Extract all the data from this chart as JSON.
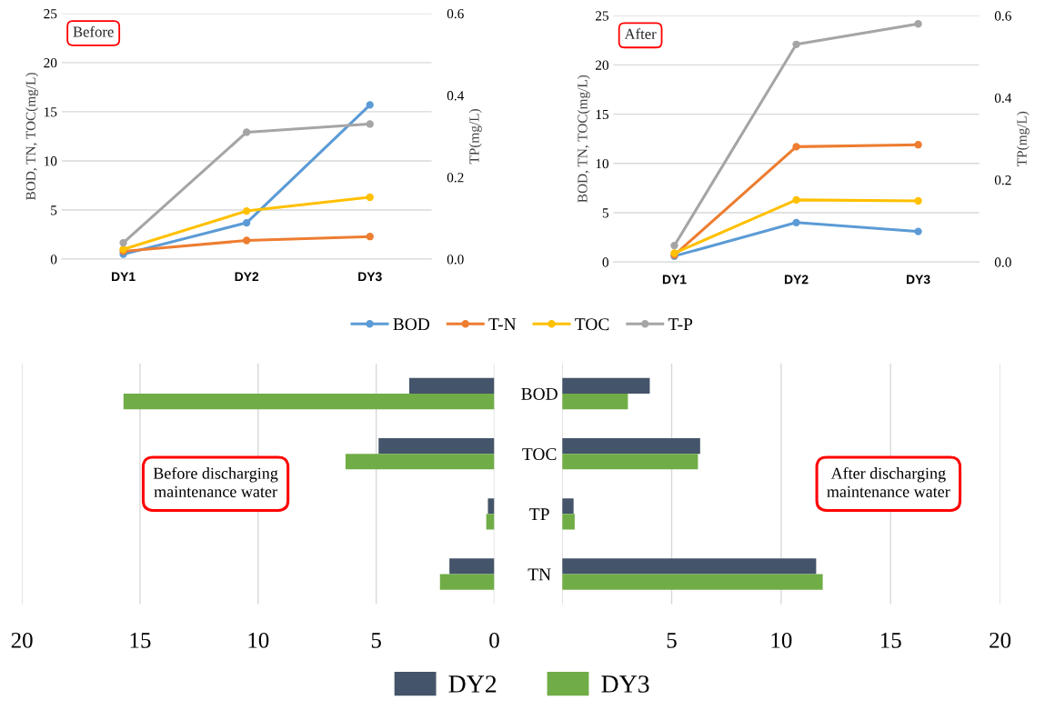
{
  "chart_data": [
    {
      "type": "line",
      "annotations": [
        "Before"
      ],
      "ylabel": "BOD, TN, TOC(mg/L)",
      "y2label": "TP(mg/L)",
      "categories": [
        "DY1",
        "DY2",
        "DY3"
      ],
      "series": [
        {
          "name": "BOD",
          "color": "#5b9bd5",
          "values": [
            0.5,
            3.7,
            15.7
          ]
        },
        {
          "name": "T-N",
          "color": "#ed7d31",
          "values": [
            0.8,
            1.9,
            2.3
          ]
        },
        {
          "name": "TOC",
          "color": "#ffc000",
          "values": [
            1.0,
            4.9,
            6.3
          ]
        },
        {
          "name": "T-P",
          "color": "#a5a5a5",
          "values": [
            0.04,
            0.31,
            0.33
          ],
          "axis": "y2"
        }
      ],
      "ylim": [
        0,
        25
      ],
      "yticks": [
        0,
        5,
        10,
        15,
        20,
        25
      ],
      "y2lim": [
        0,
        0.6
      ],
      "y2ticks": [
        {
          "value": 0,
          "label": "0.0"
        },
        0.2,
        0.4,
        0.6
      ],
      "grid": "y",
      "marker": "circle",
      "line_style": "solid",
      "legend": "bottom"
    },
    {
      "type": "line",
      "annotations": [
        "After"
      ],
      "ylabel": "BOD, TN, TOC(mg/L)",
      "y2label": "TP(mg/L)",
      "categories": [
        "DY1",
        "DY2",
        "DY3"
      ],
      "series": [
        {
          "color": "#5b9bd5",
          "values": [
            0.6,
            4.0,
            3.1
          ]
        },
        {
          "color": "#ed7d31",
          "values": [
            0.7,
            11.7,
            11.9
          ]
        },
        {
          "color": "#ffc000",
          "values": [
            0.9,
            6.3,
            6.2
          ]
        },
        {
          "color": "#a5a5a5",
          "values": [
            0.04,
            0.53,
            0.58
          ],
          "axis": "y2"
        }
      ],
      "ylim": [
        0,
        25
      ],
      "yticks": [
        0,
        5,
        10,
        15,
        20,
        25
      ],
      "y2lim": [
        0,
        0.6
      ],
      "y2ticks": [
        {
          "value": 0,
          "label": "0.0"
        },
        0.2,
        0.4,
        0.6
      ],
      "grid": "y",
      "marker": "circle",
      "line_style": "solid"
    },
    {
      "type": "bar",
      "orientation": "horizontal",
      "annotations": [
        "Before discharging\nmaintenance water"
      ],
      "categories": [
        null,
        null,
        null,
        null
      ],
      "series": [
        {
          "name": "DY2",
          "color": "#44546a",
          "values": [
            3.6,
            4.9,
            0.27,
            1.9
          ]
        },
        {
          "name": "DY3",
          "color": "#70ad47",
          "values": [
            15.7,
            6.3,
            0.34,
            2.3
          ]
        }
      ],
      "xlim": [
        20,
        0
      ],
      "xticks": [
        20,
        15,
        10,
        5,
        0
      ],
      "grid": "x",
      "tick_labels": "x",
      "legend": "bottom"
    },
    {
      "type": "bar",
      "orientation": "horizontal",
      "annotations": [
        "After discharging\nmaintenance water"
      ],
      "categories": [
        "BOD",
        "TOC",
        "TP",
        "TN"
      ],
      "series": [
        {
          "color": "#44546a",
          "values": [
            4.0,
            6.3,
            0.52,
            11.6
          ]
        },
        {
          "color": "#70ad47",
          "values": [
            3.0,
            6.2,
            0.57,
            11.9
          ]
        }
      ],
      "xlim": [
        0,
        20
      ],
      "xticks": [
        {
          "value": 0,
          "label": null
        },
        5,
        10,
        15,
        20
      ],
      "grid": "x"
    }
  ]
}
